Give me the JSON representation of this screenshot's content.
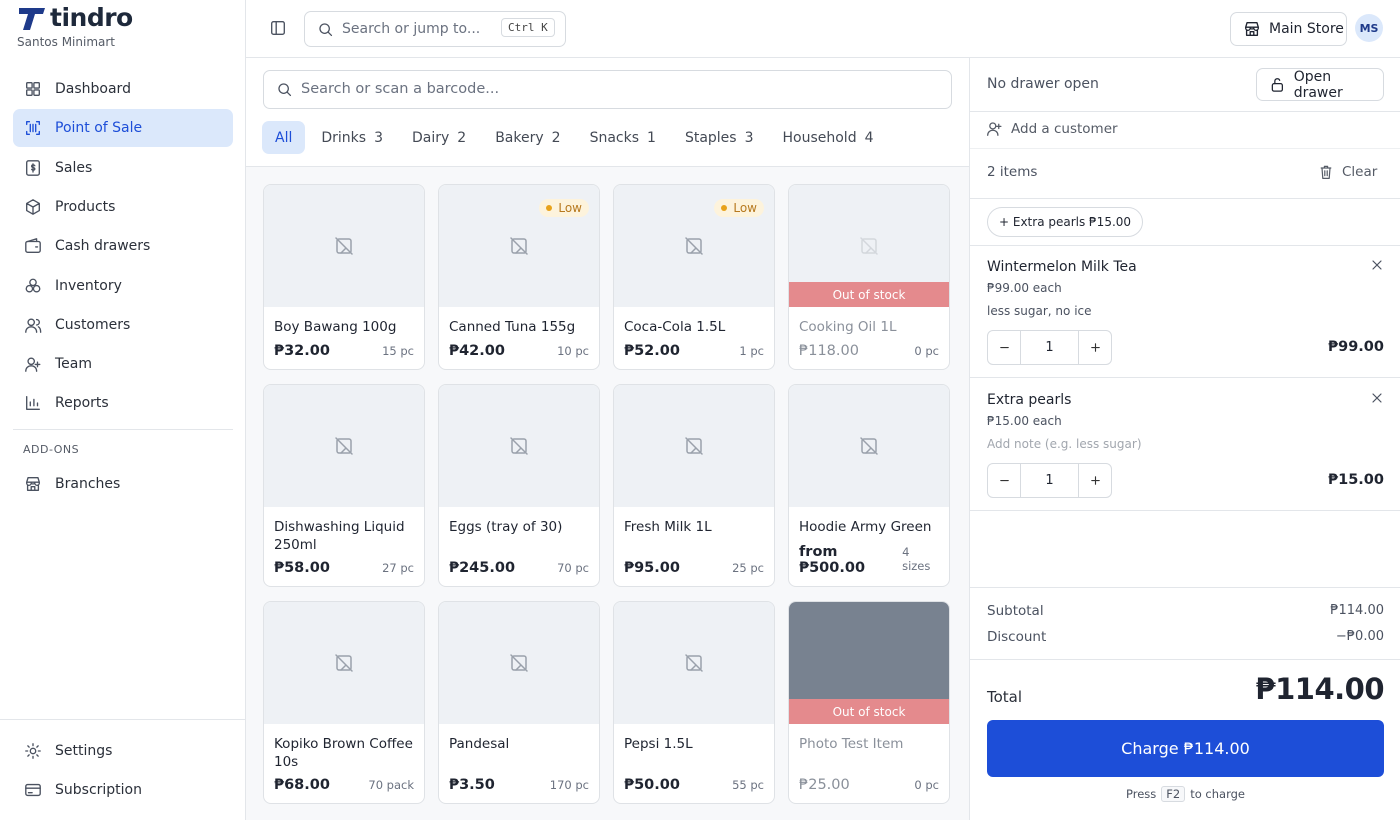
{
  "brand": {
    "name": "tindro",
    "store": "Santos Minimart"
  },
  "nav": [
    {
      "label": "Dashboard",
      "active": false
    },
    {
      "label": "Point of Sale",
      "active": true
    },
    {
      "label": "Sales",
      "active": false
    },
    {
      "label": "Products",
      "active": false
    },
    {
      "label": "Cash drawers",
      "active": false
    },
    {
      "label": "Inventory",
      "active": false
    },
    {
      "label": "Customers",
      "active": false
    },
    {
      "label": "Team",
      "active": false
    },
    {
      "label": "Reports",
      "active": false
    }
  ],
  "addons": {
    "heading": "ADD-ONS",
    "items": [
      {
        "label": "Branches"
      }
    ]
  },
  "footer_nav": [
    {
      "label": "Settings"
    },
    {
      "label": "Subscription"
    }
  ],
  "topbar": {
    "search_placeholder": "Search or jump to...",
    "shortcut": "Ctrl K",
    "store": "Main Store",
    "avatar": "MS"
  },
  "catalog": {
    "search_placeholder": "Search or scan a barcode...",
    "filters": [
      {
        "label": "All",
        "active": true
      },
      {
        "label": "Drinks",
        "count": 3
      },
      {
        "label": "Dairy",
        "count": 2
      },
      {
        "label": "Bakery",
        "count": 2
      },
      {
        "label": "Snacks",
        "count": 1
      },
      {
        "label": "Staples",
        "count": 3
      },
      {
        "label": "Household",
        "count": 4
      }
    ],
    "products": [
      {
        "name": "Boy Bawang 100g",
        "price": "₱32.00",
        "stock": "15 pc"
      },
      {
        "name": "Canned Tuna 155g",
        "price": "₱42.00",
        "stock": "10 pc",
        "badge": "Low"
      },
      {
        "name": "Coca-Cola 1.5L",
        "price": "₱52.00",
        "stock": "1 pc",
        "badge": "Low"
      },
      {
        "name": "Cooking Oil 1L",
        "price": "₱118.00",
        "stock": "0 pc",
        "out_of_stock": "Out of stock"
      },
      {
        "name": "Dishwashing Liquid 250ml",
        "price": "₱58.00",
        "stock": "27 pc"
      },
      {
        "name": "Eggs (tray of 30)",
        "price": "₱245.00",
        "stock": "70 pc"
      },
      {
        "name": "Fresh Milk 1L",
        "price": "₱95.00",
        "stock": "25 pc"
      },
      {
        "name": "Hoodie Army Green",
        "price": "from ₱500.00",
        "stock": "4 sizes"
      },
      {
        "name": "Kopiko Brown Coffee 10s",
        "price": "₱68.00",
        "stock": "70 pack"
      },
      {
        "name": "Pandesal",
        "price": "₱3.50",
        "stock": "170 pc"
      },
      {
        "name": "Pepsi 1.5L",
        "price": "₱50.00",
        "stock": "55 pc"
      },
      {
        "name": "Photo Test Item",
        "price": "₱25.00",
        "stock": "0 pc",
        "out_of_stock": "Out of stock",
        "photo": true
      }
    ]
  },
  "cart": {
    "drawer_status": "No drawer open",
    "open_drawer": "Open drawer",
    "add_customer": "Add a customer",
    "count": "2 items",
    "clear": "Clear",
    "quick_add": "+ Extra pearls ₱15.00",
    "items": [
      {
        "name": "Wintermelon Milk Tea",
        "unit": "₱99.00 each",
        "note": "less sugar, no ice",
        "note_placeholder": false,
        "qty": 1,
        "total": "₱99.00"
      },
      {
        "name": "Extra pearls",
        "unit": "₱15.00 each",
        "note": "Add note (e.g. less sugar)",
        "note_placeholder": true,
        "qty": 1,
        "total": "₱15.00"
      }
    ],
    "subtotal_label": "Subtotal",
    "subtotal": "₱114.00",
    "discount_label": "Discount",
    "discount": "−₱0.00",
    "total_label": "Total",
    "total": "₱114.00",
    "charge": "Charge ₱114.00",
    "hint_pre": "Press",
    "hint_key": "F2",
    "hint_post": "to charge"
  }
}
